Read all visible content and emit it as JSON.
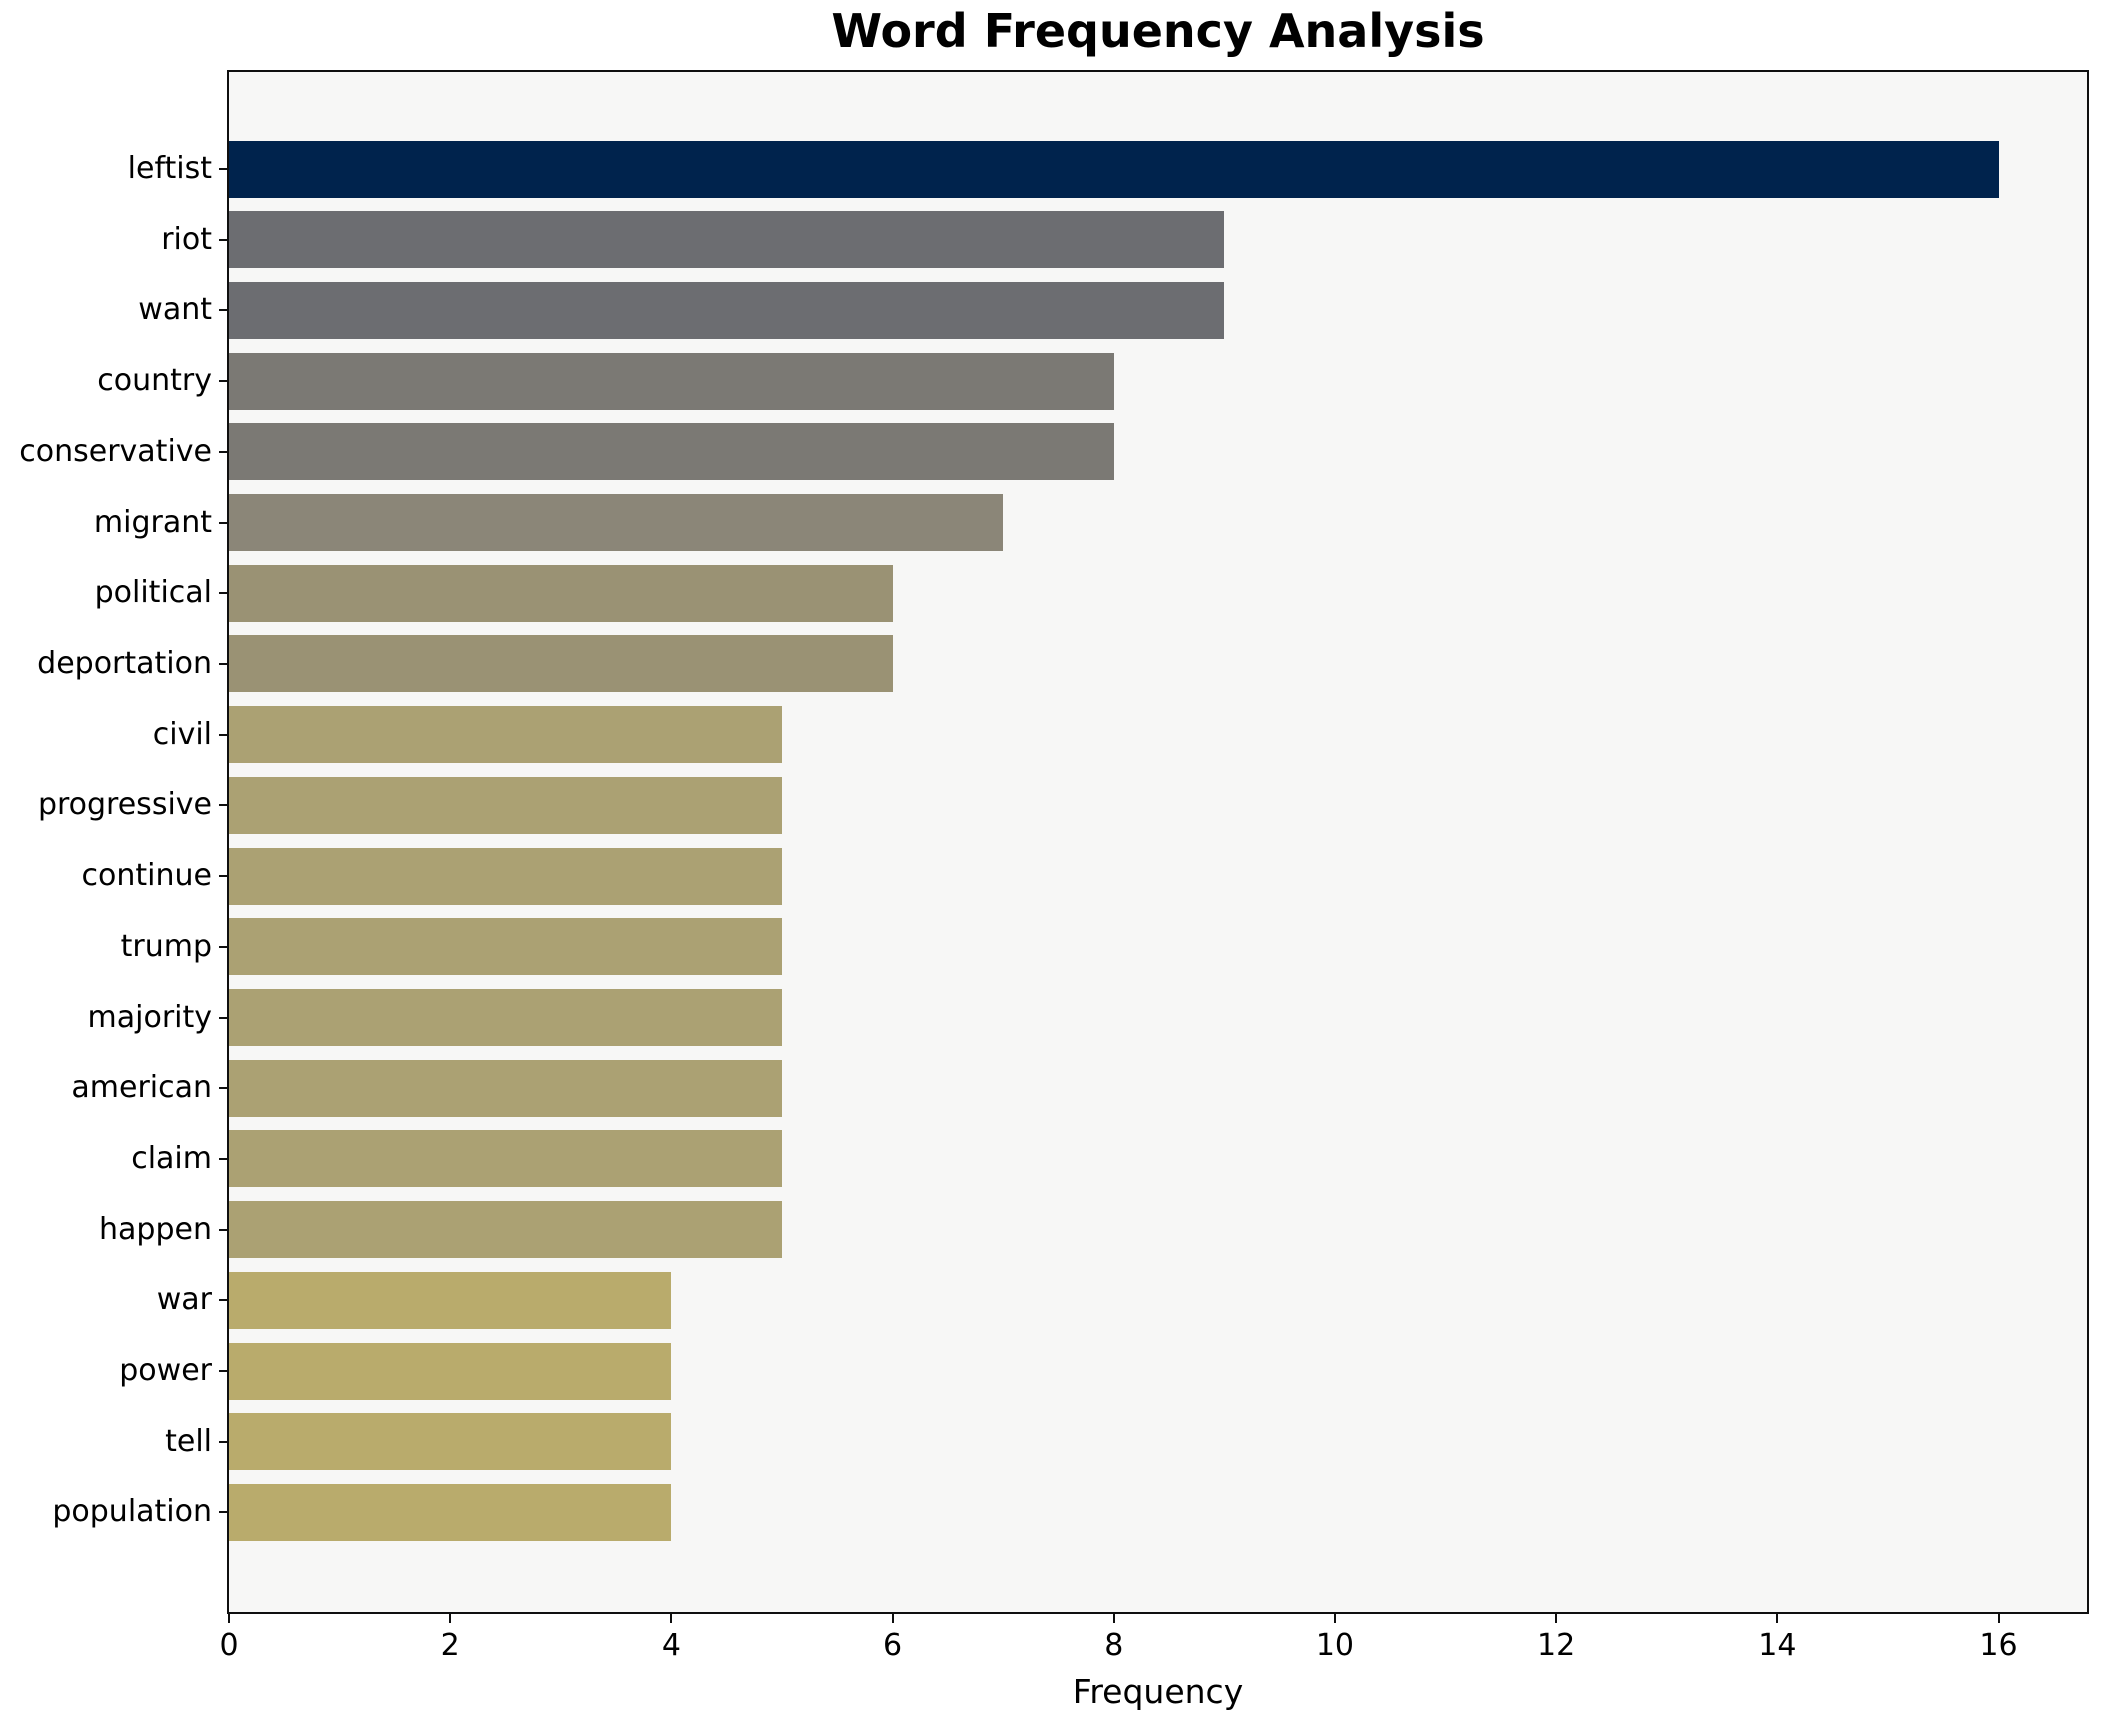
{
  "title": "Word Frequency Analysis",
  "x_axis": {
    "label": "Frequency",
    "ticks": [
      0,
      2,
      4,
      6,
      8,
      10,
      12,
      14,
      16
    ]
  },
  "chart_data": {
    "type": "bar",
    "orientation": "horizontal",
    "title": "Word Frequency Analysis",
    "xlabel": "Frequency",
    "ylabel": "",
    "xlim": [
      0,
      16.8
    ],
    "grid": false,
    "legend": false,
    "categories": [
      "leftist",
      "riot",
      "want",
      "country",
      "conservative",
      "migrant",
      "political",
      "deportation",
      "civil",
      "progressive",
      "continue",
      "trump",
      "majority",
      "american",
      "claim",
      "happen",
      "war",
      "power",
      "tell",
      "population"
    ],
    "values": [
      16,
      9,
      9,
      8,
      8,
      7,
      6,
      6,
      5,
      5,
      5,
      5,
      5,
      5,
      5,
      5,
      4,
      4,
      4,
      4
    ],
    "bar_colors": [
      "#00234d",
      "#6c6d71",
      "#6c6d71",
      "#7b7974",
      "#7b7974",
      "#8b8678",
      "#9a9274",
      "#9a9274",
      "#aba173",
      "#aba173",
      "#aba173",
      "#aba173",
      "#aba173",
      "#aba173",
      "#aba173",
      "#aba173",
      "#b9ab6c",
      "#b9ab6c",
      "#b9ab6c",
      "#b9ab6c"
    ]
  },
  "colors": {
    "figure_bg": "#ffffff",
    "plot_bg": "#f7f7f6",
    "spine": "#0f0f0f",
    "text": "#000000"
  }
}
